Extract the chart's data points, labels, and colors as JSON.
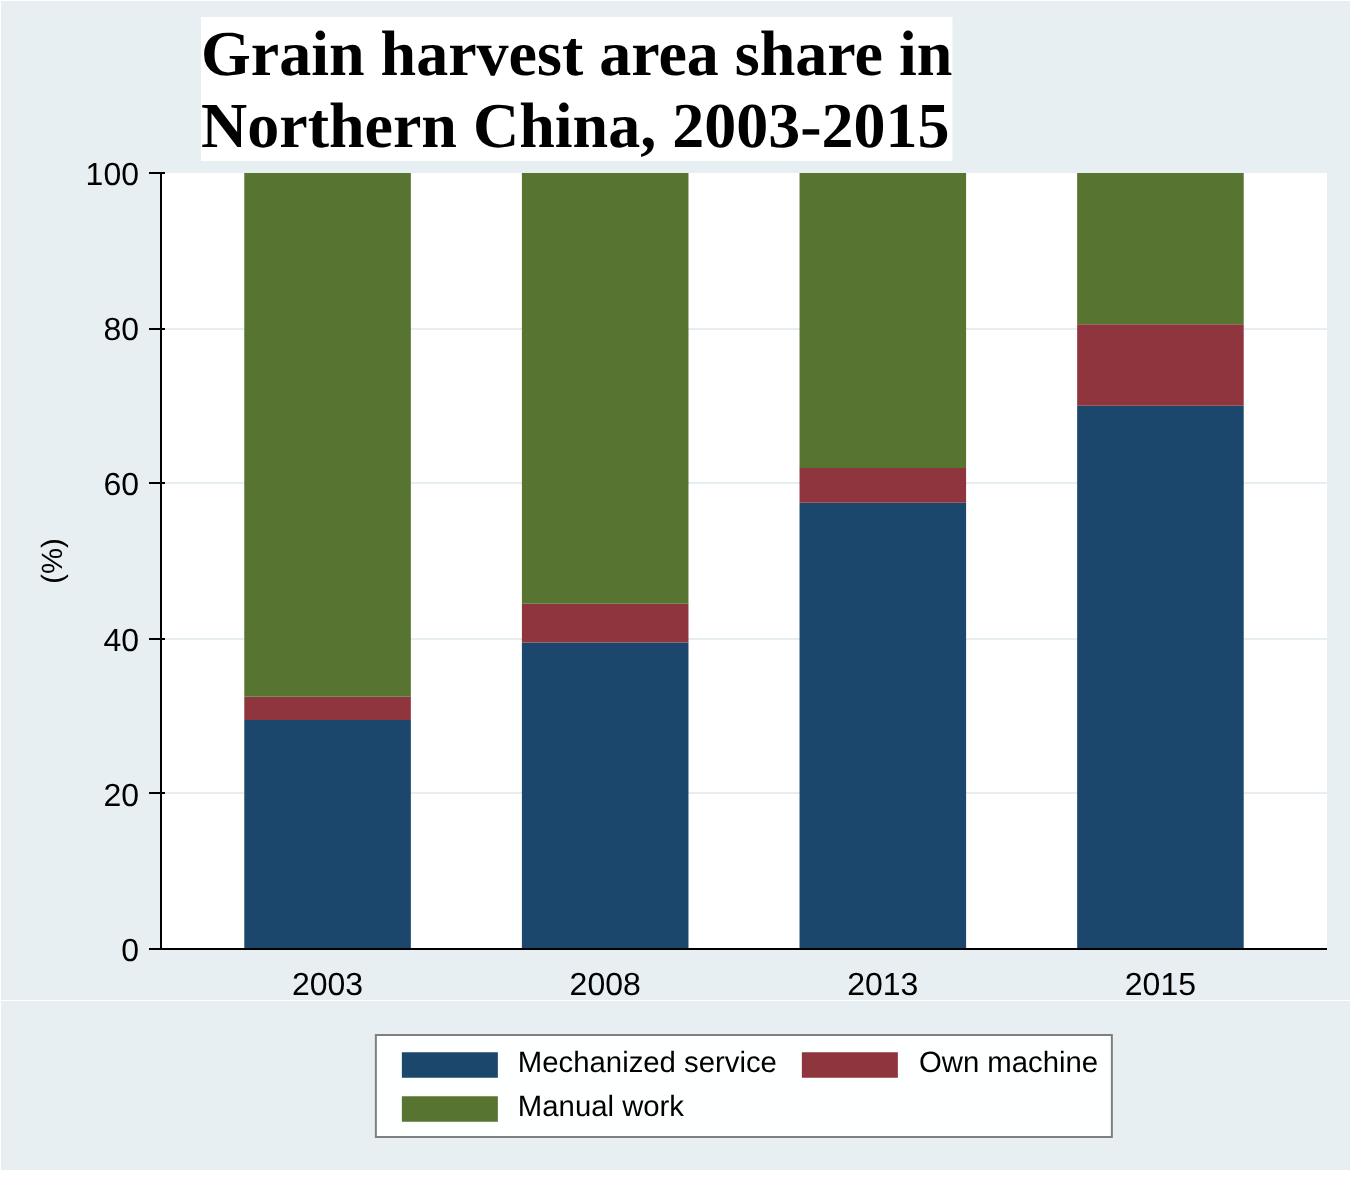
{
  "chart_data": {
    "type": "bar",
    "stacked": true,
    "title": "Grain harvest area share in Northern China, 2003-2015",
    "ylabel": "(%)",
    "categories": [
      "2003",
      "2008",
      "2013",
      "2015"
    ],
    "series": [
      {
        "name": "Mechanized service",
        "color": "#1c476d",
        "values": [
          29.5,
          39.5,
          57.5,
          70
        ]
      },
      {
        "name": "Own machine",
        "color": "#8e353d",
        "values": [
          3,
          5,
          4.5,
          10.5
        ]
      },
      {
        "name": "Manual work",
        "color": "#577530",
        "values": [
          67.5,
          55.5,
          38,
          19.5
        ]
      }
    ],
    "ylim": [
      0,
      100
    ],
    "yticks": [
      0,
      20,
      40,
      60,
      80,
      100
    ],
    "grid": "y",
    "legend": "bottom"
  }
}
